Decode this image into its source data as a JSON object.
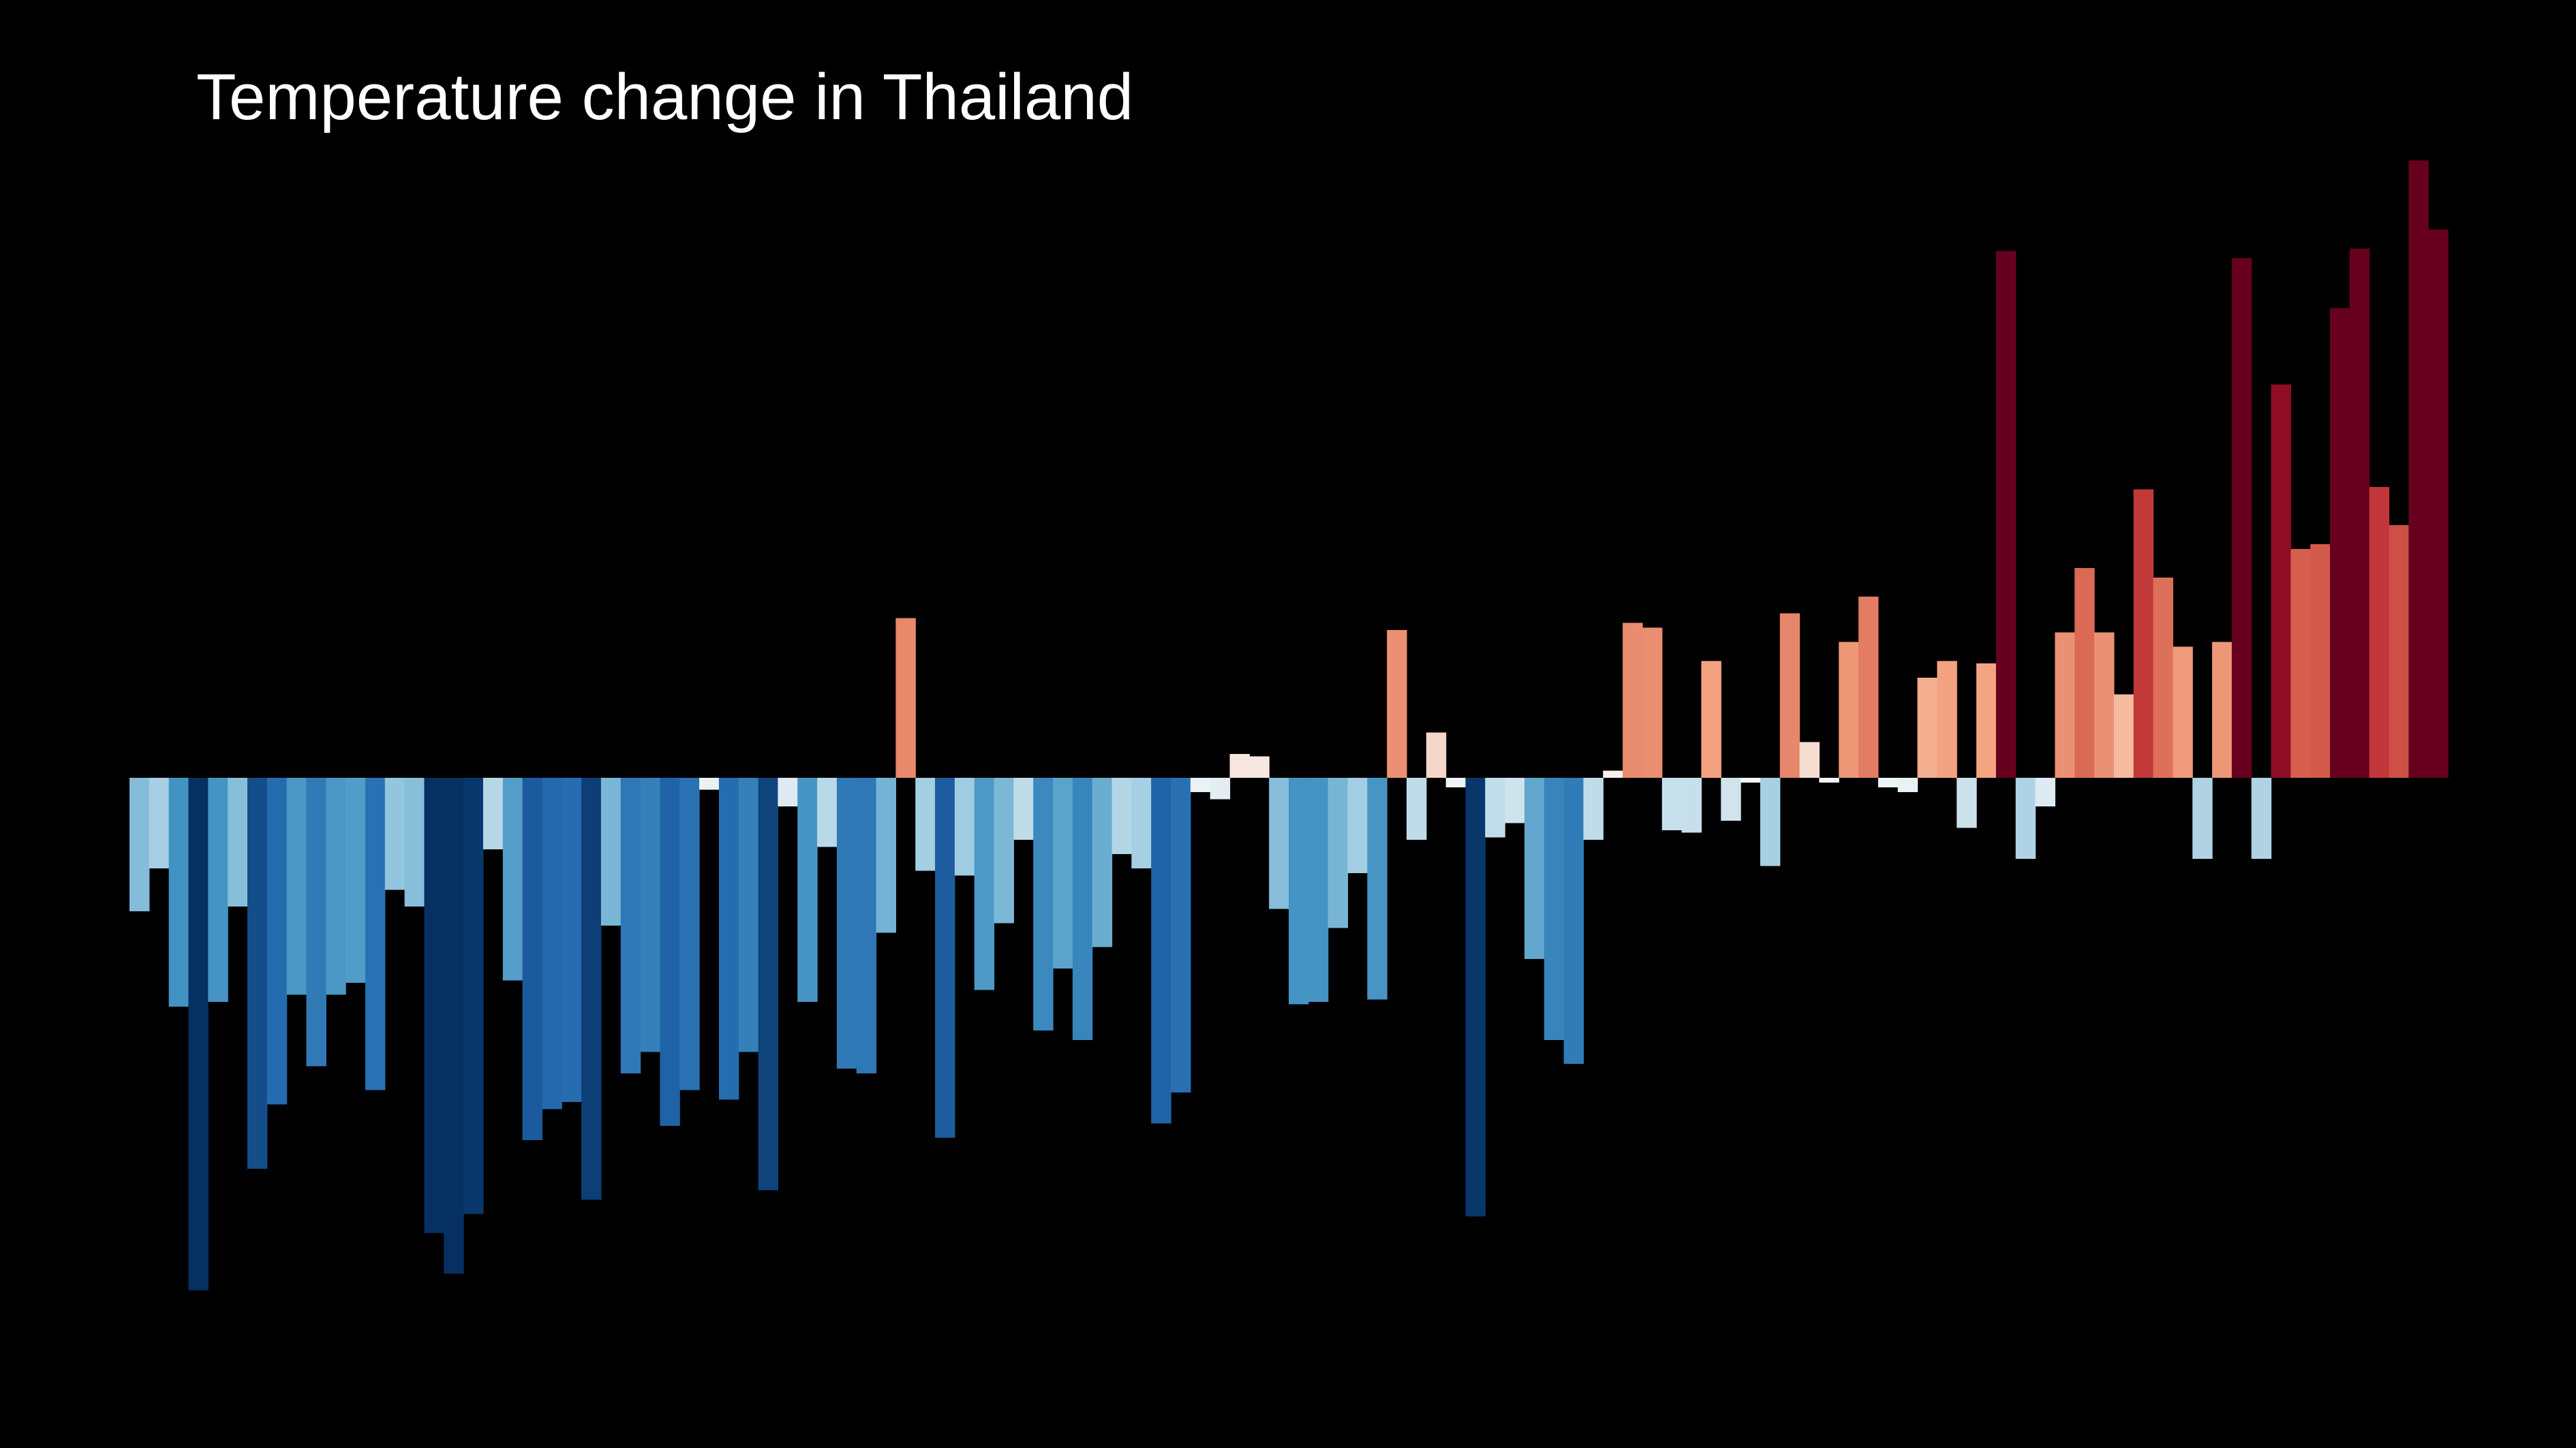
{
  "chart_data": {
    "type": "bar",
    "title": "Temperature change in Thailand",
    "xlabel": "",
    "ylabel": "",
    "grid": false,
    "legend": "none",
    "ylim": [
      -2.16,
      2.63
    ],
    "background": "#000000",
    "colormap": "RdBu_r",
    "values": [
      -0.56,
      -0.38,
      -0.96,
      -2.15,
      -0.94,
      -0.54,
      -1.64,
      -1.37,
      -0.91,
      -1.21,
      -0.91,
      -0.86,
      -1.31,
      -0.47,
      -0.54,
      -1.91,
      -2.08,
      -1.83,
      -0.3,
      -0.85,
      -1.52,
      -1.39,
      -1.36,
      -1.77,
      -0.62,
      -1.24,
      -1.15,
      -1.46,
      -1.31,
      -0.05,
      -1.35,
      -1.15,
      -1.73,
      -0.12,
      -0.94,
      -0.29,
      -1.22,
      -1.24,
      -0.65,
      0.67,
      -0.39,
      -1.51,
      -0.41,
      -0.89,
      -0.61,
      -0.26,
      -1.06,
      -0.8,
      -1.1,
      -0.71,
      -0.32,
      -0.38,
      -1.45,
      -1.32,
      -0.06,
      -0.09,
      0.1,
      0.09,
      -0.55,
      -0.95,
      -0.94,
      -0.63,
      -0.4,
      -0.93,
      0.62,
      -0.26,
      0.19,
      -0.04,
      -1.84,
      -0.25,
      -0.19,
      -0.76,
      -1.1,
      -1.2,
      -0.26,
      0.03,
      0.65,
      0.63,
      -0.22,
      -0.23,
      0.49,
      -0.18,
      -0.02,
      -0.37,
      0.69,
      0.15,
      -0.02,
      0.57,
      0.76,
      -0.04,
      -0.06,
      0.42,
      0.49,
      -0.21,
      0.48,
      2.21,
      -0.34,
      -0.12,
      0.61,
      0.88,
      0.61,
      0.35,
      1.21,
      0.84,
      0.55,
      -0.34,
      0.57,
      2.18,
      -0.34,
      1.65,
      0.96,
      0.98,
      1.97,
      2.22,
      1.22,
      1.06,
      2.59,
      2.3
    ]
  }
}
